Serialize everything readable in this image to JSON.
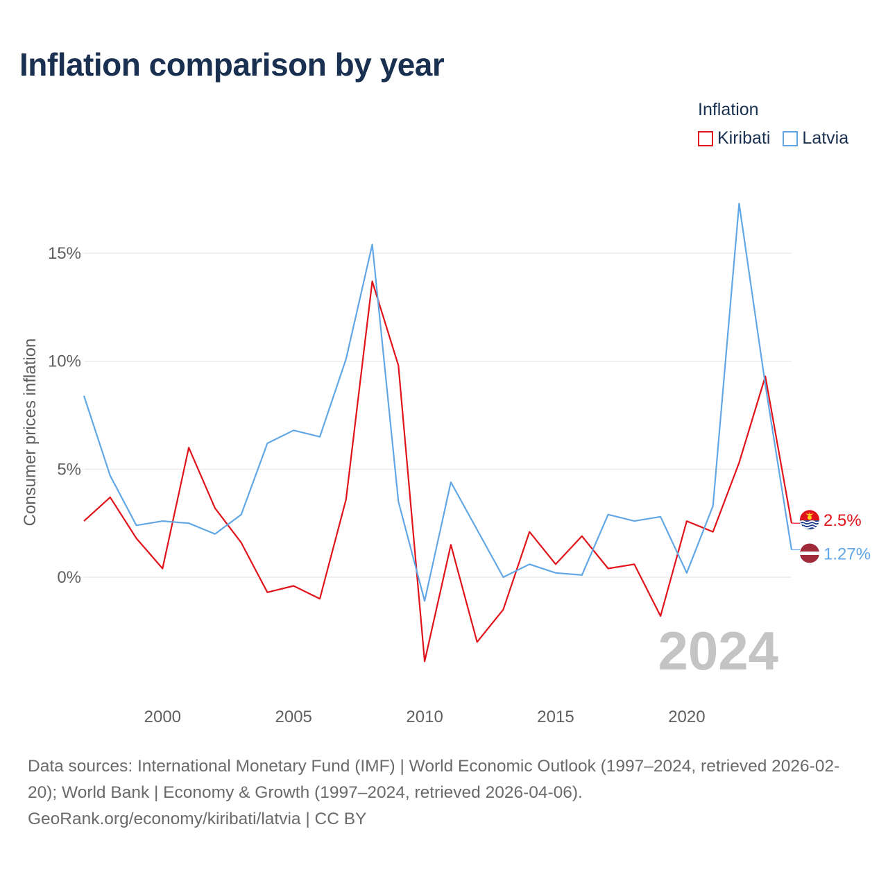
{
  "title": "Inflation comparison by year",
  "legend": {
    "title": "Inflation",
    "items": [
      {
        "label": "Kiribati",
        "color": "#e0131b"
      },
      {
        "label": "Latvia",
        "color": "#62a7e5"
      }
    ]
  },
  "year_watermark": "2024",
  "sources": {
    "line1": "Data sources: International Monetary Fund (IMF) | World Economic Outlook (1997–2024, retrieved 2026-02-20); World Bank | Economy & Growth (1997–2024, retrieved 2026-04-06).",
    "line2": "GeoRank.org/economy/kiribati/latvia | CC BY"
  },
  "chart_data": {
    "type": "line",
    "title": "Inflation comparison by year",
    "xlabel": "",
    "ylabel": "Consumer prices inflation",
    "xlim": [
      1997,
      2024
    ],
    "ylim": [
      -5.5,
      19
    ],
    "x_ticks": [
      2000,
      2005,
      2010,
      2015,
      2020
    ],
    "x_tick_labels": [
      "2000",
      "2005",
      "2010",
      "2015",
      "2020"
    ],
    "y_ticks": [
      0,
      5,
      10,
      15
    ],
    "y_tick_labels": [
      "0%",
      "5%",
      "10%",
      "15%"
    ],
    "grid": true,
    "legend_position": "top-right",
    "x": [
      1997,
      1998,
      1999,
      2000,
      2001,
      2002,
      2003,
      2004,
      2005,
      2006,
      2007,
      2008,
      2009,
      2010,
      2011,
      2012,
      2013,
      2014,
      2015,
      2016,
      2017,
      2018,
      2019,
      2020,
      2021,
      2022,
      2023,
      2024
    ],
    "series": [
      {
        "name": "Kiribati",
        "color": "#e0131b",
        "end_label": "2.5%",
        "values": [
          2.6,
          3.7,
          1.8,
          0.4,
          6.0,
          3.2,
          1.6,
          -0.7,
          -0.4,
          -1.0,
          3.6,
          13.7,
          9.8,
          -3.9,
          1.5,
          -3.0,
          -1.5,
          2.1,
          0.6,
          1.9,
          0.4,
          0.6,
          -1.8,
          2.6,
          2.1,
          5.3,
          9.3,
          2.5
        ]
      },
      {
        "name": "Latvia",
        "color": "#62a7e5",
        "end_label": "1.27%",
        "values": [
          8.4,
          4.7,
          2.4,
          2.6,
          2.5,
          2.0,
          2.9,
          6.2,
          6.8,
          6.5,
          10.1,
          15.4,
          3.5,
          -1.1,
          4.4,
          2.2,
          0.0,
          0.6,
          0.2,
          0.1,
          2.9,
          2.6,
          2.8,
          0.2,
          3.3,
          17.3,
          8.9,
          1.27
        ]
      }
    ]
  }
}
